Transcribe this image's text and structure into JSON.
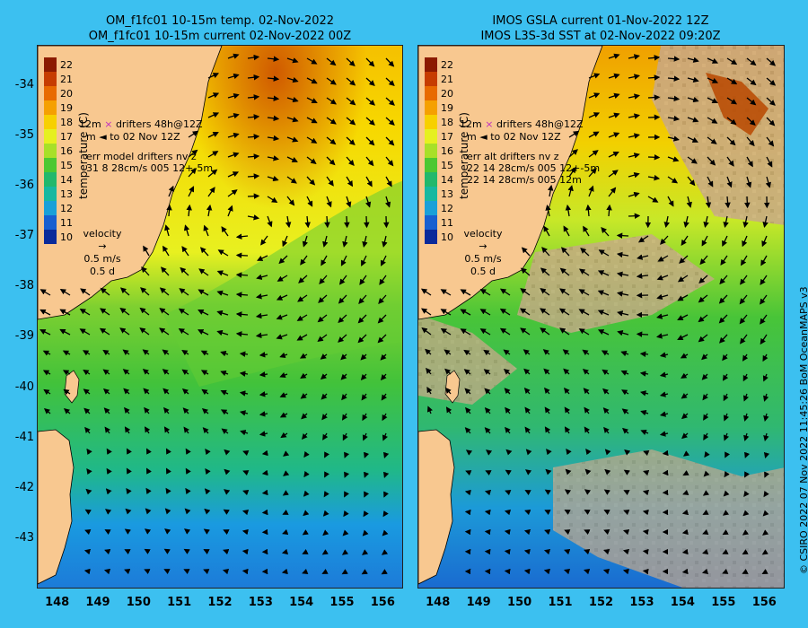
{
  "left_panel": {
    "title_line1": "OM_f1fc01 10-15m temp. 02-Nov-2022",
    "title_line2": "OM_f1fc01 10-15m current 02-Nov-2022 00Z",
    "legend_line1": "12m",
    "legend_line1b": "drifters 48h@12Z",
    "legend_line2": "m",
    "legend_line2b": "to 02 Nov 12Z",
    "err_line1": "err model drifters nv z",
    "err_line2": "31 8 28cm/s 005 12+-5m"
  },
  "right_panel": {
    "title_line1": "IMOS GSLA current 01-Nov-2022 12Z",
    "title_line2": "IMOS L3S-3d SST at 02-Nov-2022 09:20Z",
    "legend_line1": "12m",
    "legend_line1b": "drifters 48h@12Z",
    "legend_line2": "m",
    "legend_line2b": "to 02 Nov 12Z",
    "err_line1": "err alt drifters nv z",
    "err_line2": "22 14 28cm/s 005 12+-5m",
    "err_line3": "22 14 28cm/s 005 12m"
  },
  "velocity_legend": {
    "title": "velocity",
    "speed": "0.5 m/s",
    "duration": "0.5 d"
  },
  "colorbar": {
    "label": "temperature (C)",
    "ticks": [
      "22",
      "21",
      "20",
      "19",
      "18",
      "17",
      "16",
      "15",
      "14",
      "13",
      "12",
      "11",
      "10"
    ],
    "colors": [
      "#8b1a00",
      "#c63c00",
      "#e86a00",
      "#f5a000",
      "#f7d000",
      "#e6f020",
      "#a8e028",
      "#4cc832",
      "#22b86c",
      "#18b8a0",
      "#1aa0d8",
      "#1860d0",
      "#0a2a9a"
    ]
  },
  "map_scale": {
    "lon_range": [
      147.5,
      156.5
    ],
    "lat_range": [
      -44.0,
      -33.2
    ],
    "lon_ticks": [
      "148",
      "149",
      "150",
      "151",
      "152",
      "153",
      "154",
      "155",
      "156"
    ],
    "lat_ticks": [
      "-34",
      "-35",
      "-36",
      "-37",
      "-38",
      "-39",
      "-40",
      "-41",
      "-42",
      "-43"
    ]
  },
  "credit": "© CSIRO 2022   07 Nov 2022 11:45:26 BoM OceanMAPS v3",
  "colors": {
    "background": "#3cc0f0",
    "land": "#f8c890",
    "cloud": "#c8a888"
  }
}
